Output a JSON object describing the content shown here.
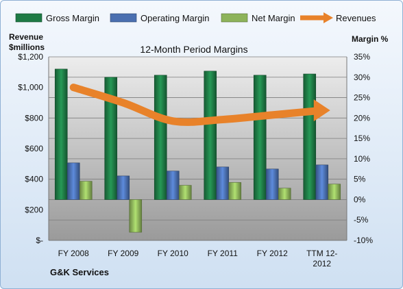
{
  "chart_data": {
    "type": "bar",
    "title": "12-Month Period Margins",
    "company": "G&K Services",
    "left_axis_title": [
      "Revenue",
      "$millions"
    ],
    "right_axis_title": "Margin %",
    "left_axis": {
      "min": 0,
      "max": 1200,
      "ticks": [
        "$-",
        "$200",
        "$400",
        "$600",
        "$800",
        "$1,000",
        "$1,200"
      ]
    },
    "right_axis": {
      "min": -10,
      "max": 35,
      "ticks": [
        "-10%",
        "-5%",
        "0%",
        "5%",
        "10%",
        "15%",
        "20%",
        "25%",
        "30%",
        "35%"
      ]
    },
    "categories": [
      "FY 2008",
      "FY 2009",
      "FY 2010",
      "FY 2011",
      "FY 2012",
      "TTM 12-2012"
    ],
    "category_labels": [
      [
        "FY 2008"
      ],
      [
        "FY 2009"
      ],
      [
        "FY 2010"
      ],
      [
        "FY 2011"
      ],
      [
        "FY 2012"
      ],
      [
        "TTM 12-",
        "2012"
      ]
    ],
    "series": [
      {
        "name": "Gross Margin",
        "axis": "right",
        "color": "#1e7a45",
        "values": [
          32.0,
          30.0,
          30.5,
          31.5,
          30.5,
          30.8
        ]
      },
      {
        "name": "Operating Margin",
        "axis": "right",
        "color": "#4a6fb0",
        "values": [
          9.0,
          5.8,
          7.0,
          8.0,
          7.5,
          8.5
        ]
      },
      {
        "name": "Net Margin",
        "axis": "right",
        "color": "#8db35a",
        "values": [
          4.5,
          -8.0,
          3.5,
          4.2,
          2.8,
          3.8
        ]
      },
      {
        "name": "Revenues",
        "axis": "left",
        "type": "line",
        "color": "#e8822a",
        "values": [
          1000,
          900,
          780,
          790,
          820,
          850
        ]
      }
    ],
    "grid": true,
    "legend": "top"
  }
}
